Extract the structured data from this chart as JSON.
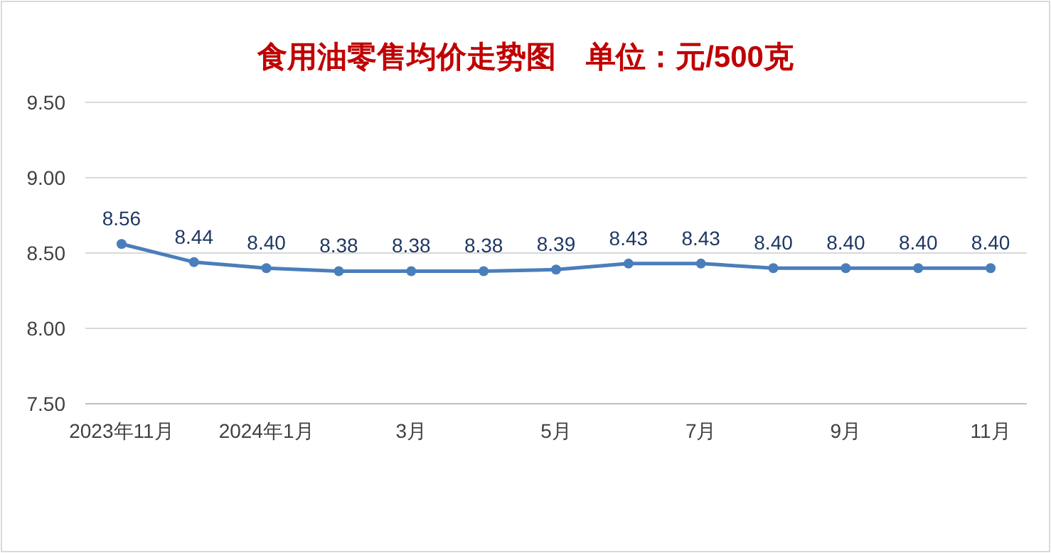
{
  "chart_data": {
    "type": "line",
    "title": "食用油零售均价走势图　单位：元/500克",
    "categories": [
      "2023年11月",
      null,
      "2024年1月",
      null,
      "3月",
      null,
      "5月",
      null,
      "7月",
      null,
      "9月",
      null,
      "11月"
    ],
    "series": [
      {
        "color": "#4a7ebb",
        "values": [
          8.56,
          8.44,
          8.4,
          8.38,
          8.38,
          8.38,
          8.39,
          8.43,
          8.43,
          8.4,
          8.4,
          8.4,
          8.4
        ],
        "value_labels": [
          "8.56",
          "8.44",
          "8.40",
          "8.38",
          "8.38",
          "8.38",
          "8.39",
          "8.43",
          "8.43",
          "8.40",
          "8.40",
          "8.40",
          "8.40"
        ]
      }
    ],
    "ylim": [
      7.5,
      9.5
    ],
    "yticks": [
      {
        "value": 7.5,
        "label": "7.50"
      },
      {
        "value": 8,
        "label": "8.00"
      },
      {
        "value": 8.5,
        "label": "8.50"
      },
      {
        "value": 9,
        "label": "9.00"
      },
      {
        "value": 9.5,
        "label": "9.50"
      }
    ],
    "grid": "y",
    "marker": "circle"
  }
}
